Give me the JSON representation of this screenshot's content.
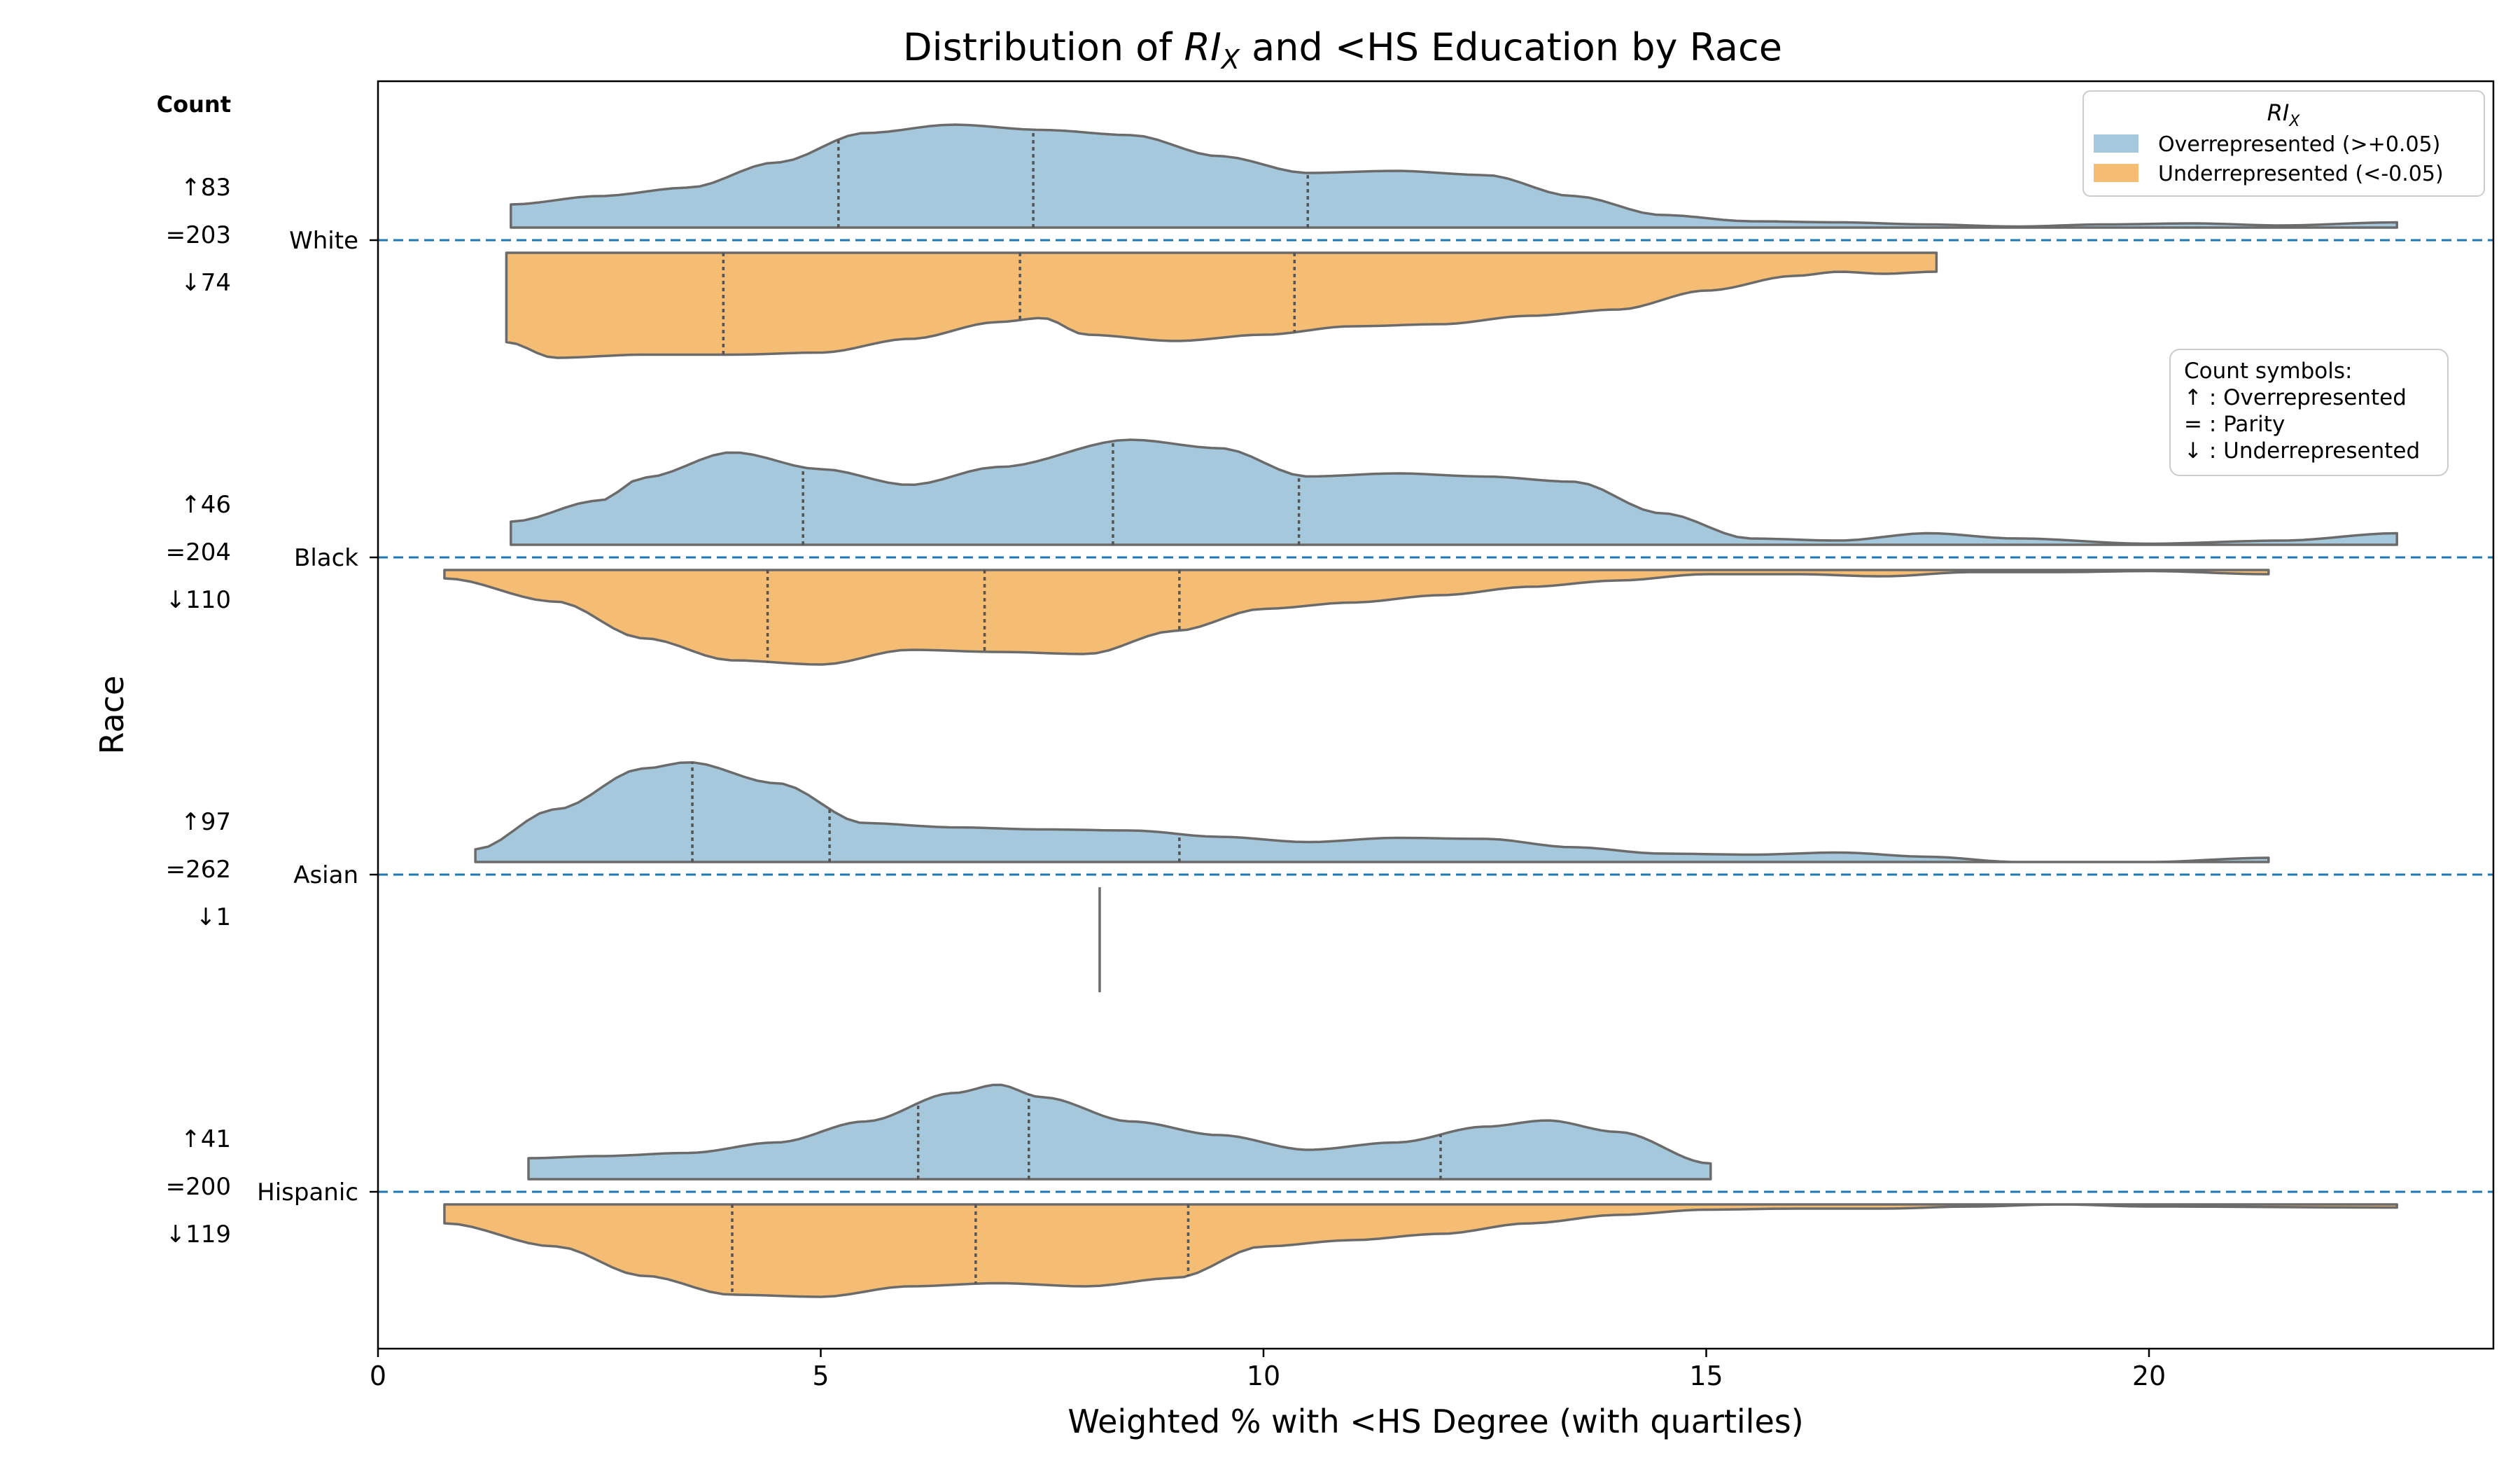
{
  "chart_data": {
    "type": "violin",
    "title_prefix": "Distribution of ",
    "title_symbol": "RI",
    "title_subscript": "X",
    "title_suffix": " and <HS Education by Race",
    "xlabel": "Weighted % with <HS Degree (with quartiles)",
    "ylabel": "Race",
    "xlim": [
      0,
      23.9
    ],
    "xticks": [
      0,
      5,
      10,
      15,
      20
    ],
    "grid": false,
    "count_header": "Count",
    "legend": {
      "title_symbol": "RI",
      "title_subscript": "X",
      "placement": "top-right",
      "entries": [
        {
          "label": "Overrepresented (>+0.05)",
          "color": "#a6c8dc"
        },
        {
          "label": "Underrepresented (<-0.05)",
          "color": "#f5bc73"
        }
      ]
    },
    "symbols_legend": {
      "title": "Count symbols:",
      "lines": [
        "↑ : Overrepresented",
        "= : Parity",
        "↓ : Underrepresented"
      ]
    },
    "colors": {
      "over": "#a6c8dc",
      "under": "#f5bc73",
      "outline": "#6b6b6b",
      "baseline": "#1f77b4"
    },
    "categories": [
      {
        "name": "White",
        "counts": {
          "over": "↑83",
          "parity": "=203",
          "under": "↓74"
        },
        "over": {
          "range": [
            1.5,
            22.8
          ],
          "quartiles": [
            5.2,
            7.4,
            10.5
          ],
          "density": [
            [
              1.5,
              0.22
            ],
            [
              2.5,
              0.3
            ],
            [
              3.5,
              0.38
            ],
            [
              4.5,
              0.62
            ],
            [
              5.5,
              0.9
            ],
            [
              6.5,
              0.98
            ],
            [
              7.5,
              0.93
            ],
            [
              8.5,
              0.88
            ],
            [
              9.5,
              0.68
            ],
            [
              10.5,
              0.52
            ],
            [
              11.5,
              0.54
            ],
            [
              12.5,
              0.5
            ],
            [
              13.5,
              0.3
            ],
            [
              14.5,
              0.12
            ],
            [
              15.5,
              0.06
            ],
            [
              16.5,
              0.05
            ],
            [
              17.5,
              0.03
            ],
            [
              18.5,
              0.01
            ],
            [
              19.5,
              0.03
            ],
            [
              20.5,
              0.04
            ],
            [
              21.5,
              0.02
            ],
            [
              22.8,
              0.05
            ]
          ]
        },
        "under": {
          "range": [
            1.45,
            17.6
          ],
          "quartiles": [
            3.9,
            7.25,
            10.35
          ],
          "density": [
            [
              1.45,
              0.85
            ],
            [
              2.0,
              1.0
            ],
            [
              3.0,
              0.97
            ],
            [
              4.0,
              0.97
            ],
            [
              5.0,
              0.95
            ],
            [
              6.0,
              0.82
            ],
            [
              7.0,
              0.66
            ],
            [
              7.5,
              0.62
            ],
            [
              8.0,
              0.78
            ],
            [
              9.0,
              0.84
            ],
            [
              10.0,
              0.78
            ],
            [
              11.0,
              0.7
            ],
            [
              12.0,
              0.68
            ],
            [
              13.0,
              0.6
            ],
            [
              14.0,
              0.54
            ],
            [
              15.0,
              0.36
            ],
            [
              16.0,
              0.22
            ],
            [
              16.5,
              0.18
            ],
            [
              17.0,
              0.2
            ],
            [
              17.6,
              0.18
            ]
          ]
        }
      },
      {
        "name": "Black",
        "counts": {
          "over": "↑46",
          "parity": "=204",
          "under": "↓110"
        },
        "over": {
          "range": [
            1.5,
            22.8
          ],
          "quartiles": [
            4.8,
            8.3,
            10.4
          ],
          "density": [
            [
              1.5,
              0.22
            ],
            [
              2.5,
              0.42
            ],
            [
              3.0,
              0.64
            ],
            [
              4.0,
              0.88
            ],
            [
              5.0,
              0.72
            ],
            [
              6.0,
              0.57
            ],
            [
              7.0,
              0.74
            ],
            [
              8.5,
              1.0
            ],
            [
              9.5,
              0.92
            ],
            [
              10.5,
              0.65
            ],
            [
              11.5,
              0.68
            ],
            [
              12.5,
              0.65
            ],
            [
              13.5,
              0.6
            ],
            [
              14.5,
              0.3
            ],
            [
              15.5,
              0.06
            ],
            [
              16.5,
              0.04
            ],
            [
              17.5,
              0.11
            ],
            [
              18.5,
              0.06
            ],
            [
              20.0,
              0.01
            ],
            [
              21.5,
              0.04
            ],
            [
              22.8,
              0.11
            ]
          ]
        },
        "under": {
          "range": [
            0.75,
            21.35
          ],
          "quartiles": [
            4.4,
            6.85,
            9.05
          ],
          "density": [
            [
              0.75,
              0.08
            ],
            [
              2.0,
              0.3
            ],
            [
              3.0,
              0.65
            ],
            [
              4.0,
              0.86
            ],
            [
              5.0,
              0.9
            ],
            [
              6.0,
              0.76
            ],
            [
              7.0,
              0.78
            ],
            [
              8.0,
              0.8
            ],
            [
              9.0,
              0.58
            ],
            [
              10.0,
              0.37
            ],
            [
              11.0,
              0.31
            ],
            [
              12.0,
              0.24
            ],
            [
              13.0,
              0.16
            ],
            [
              14.0,
              0.1
            ],
            [
              15.0,
              0.04
            ],
            [
              16.0,
              0.04
            ],
            [
              17.0,
              0.06
            ],
            [
              18.0,
              0.02
            ],
            [
              19.0,
              0.02
            ],
            [
              20.0,
              0.01
            ],
            [
              21.35,
              0.04
            ]
          ]
        }
      },
      {
        "name": "Asian",
        "counts": {
          "over": "↑97",
          "parity": "=262",
          "under": "↓1"
        },
        "over": {
          "range": [
            1.1,
            21.35
          ],
          "quartiles": [
            3.55,
            5.1,
            9.05
          ],
          "density": [
            [
              1.1,
              0.12
            ],
            [
              2.0,
              0.5
            ],
            [
              3.0,
              0.89
            ],
            [
              3.5,
              0.95
            ],
            [
              4.5,
              0.75
            ],
            [
              5.5,
              0.37
            ],
            [
              6.5,
              0.33
            ],
            [
              7.5,
              0.31
            ],
            [
              8.5,
              0.3
            ],
            [
              9.5,
              0.24
            ],
            [
              10.5,
              0.19
            ],
            [
              11.5,
              0.23
            ],
            [
              12.5,
              0.22
            ],
            [
              13.5,
              0.14
            ],
            [
              14.5,
              0.08
            ],
            [
              15.5,
              0.07
            ],
            [
              16.5,
              0.09
            ],
            [
              17.5,
              0.05
            ],
            [
              18.5,
              0.0
            ],
            [
              20.0,
              0.0
            ],
            [
              21.35,
              0.04
            ]
          ]
        },
        "under": {
          "single_value": 8.15
        }
      },
      {
        "name": "Hispanic",
        "counts": {
          "over": "↑41",
          "parity": "=200",
          "under": "↓119"
        },
        "over": {
          "range": [
            1.7,
            15.05
          ],
          "quartiles": [
            6.1,
            7.35,
            12.0
          ],
          "density": [
            [
              1.7,
              0.2
            ],
            [
              2.5,
              0.22
            ],
            [
              3.5,
              0.25
            ],
            [
              4.5,
              0.35
            ],
            [
              5.5,
              0.55
            ],
            [
              6.5,
              0.82
            ],
            [
              7.0,
              0.9
            ],
            [
              7.5,
              0.78
            ],
            [
              8.5,
              0.55
            ],
            [
              9.5,
              0.42
            ],
            [
              10.5,
              0.28
            ],
            [
              11.5,
              0.35
            ],
            [
              12.5,
              0.5
            ],
            [
              13.2,
              0.56
            ],
            [
              14.0,
              0.45
            ],
            [
              15.05,
              0.15
            ]
          ]
        },
        "under": {
          "range": [
            0.75,
            22.8
          ],
          "quartiles": [
            4.0,
            6.75,
            9.15
          ],
          "density": [
            [
              0.75,
              0.18
            ],
            [
              2.0,
              0.4
            ],
            [
              3.0,
              0.68
            ],
            [
              4.0,
              0.86
            ],
            [
              5.0,
              0.88
            ],
            [
              6.0,
              0.78
            ],
            [
              7.0,
              0.75
            ],
            [
              8.0,
              0.78
            ],
            [
              9.0,
              0.7
            ],
            [
              10.0,
              0.4
            ],
            [
              11.0,
              0.34
            ],
            [
              12.0,
              0.28
            ],
            [
              13.0,
              0.18
            ],
            [
              14.0,
              0.1
            ],
            [
              15.0,
              0.05
            ],
            [
              16.0,
              0.04
            ],
            [
              17.0,
              0.04
            ],
            [
              18.0,
              0.02
            ],
            [
              19.0,
              0.0
            ],
            [
              20.0,
              0.02
            ],
            [
              22.8,
              0.03
            ]
          ]
        }
      }
    ]
  }
}
